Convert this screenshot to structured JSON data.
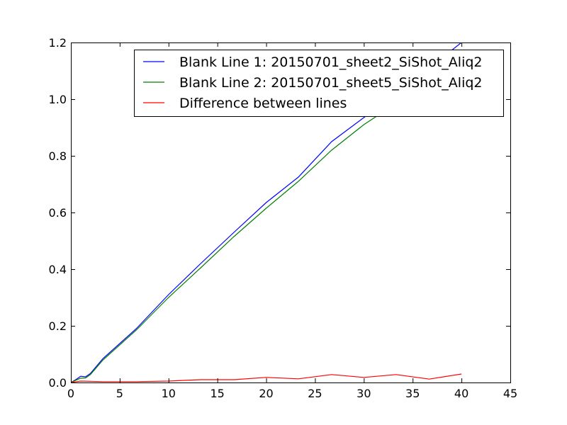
{
  "chart_data": {
    "type": "line",
    "title": "",
    "xlabel": "",
    "ylabel": "",
    "xlim": [
      0,
      45
    ],
    "ylim": [
      0,
      1.2
    ],
    "xticks": [
      0,
      5,
      10,
      15,
      20,
      25,
      30,
      35,
      40,
      45
    ],
    "yticks": [
      0.0,
      0.2,
      0.4,
      0.6,
      0.8,
      1.0,
      1.2
    ],
    "xtick_labels": [
      "0",
      "5",
      "10",
      "15",
      "20",
      "25",
      "30",
      "35",
      "40",
      "45"
    ],
    "ytick_labels": [
      "0.0",
      "0.2",
      "0.4",
      "0.6",
      "0.8",
      "1.0",
      "1.2"
    ],
    "grid": false,
    "legend_position": "top-right",
    "series": [
      {
        "name": "Blank Line 1: 20150701_sheet2_SiShot_Aliq2",
        "color": "#0000ff",
        "x": [
          0,
          0.5,
          1.0,
          1.5,
          2.0,
          3.3,
          6.7,
          10,
          13.3,
          16.7,
          20,
          23.3,
          26.7,
          30,
          33.3,
          36.7,
          40
        ],
        "y": [
          0,
          0.01,
          0.022,
          0.02,
          0.032,
          0.085,
          0.19,
          0.31,
          0.42,
          0.53,
          0.635,
          0.725,
          0.85,
          0.935,
          1.02,
          1.11,
          1.2
        ]
      },
      {
        "name": "Blank Line 2: 20150701_sheet5_SiShot_Aliq2",
        "color": "#008000",
        "x": [
          0,
          0.5,
          1.0,
          1.5,
          2.0,
          3.3,
          6.7,
          10,
          13.3,
          16.7,
          20,
          23.3,
          26.7,
          30,
          33.3,
          36.7,
          40
        ],
        "y": [
          0,
          0.008,
          0.015,
          0.016,
          0.028,
          0.08,
          0.185,
          0.3,
          0.405,
          0.515,
          0.615,
          0.71,
          0.82,
          0.91,
          0.985,
          1.08,
          1.17
        ]
      },
      {
        "name": "Difference between lines",
        "color": "#ff0000",
        "x": [
          0,
          1.0,
          3.3,
          6.7,
          10,
          13.3,
          16.7,
          20,
          23.3,
          26.7,
          30,
          33.3,
          36.7,
          40
        ],
        "y": [
          0,
          0.005,
          0.003,
          0.003,
          0.005,
          0.01,
          0.01,
          0.018,
          0.013,
          0.028,
          0.018,
          0.028,
          0.012,
          0.03
        ]
      }
    ]
  }
}
